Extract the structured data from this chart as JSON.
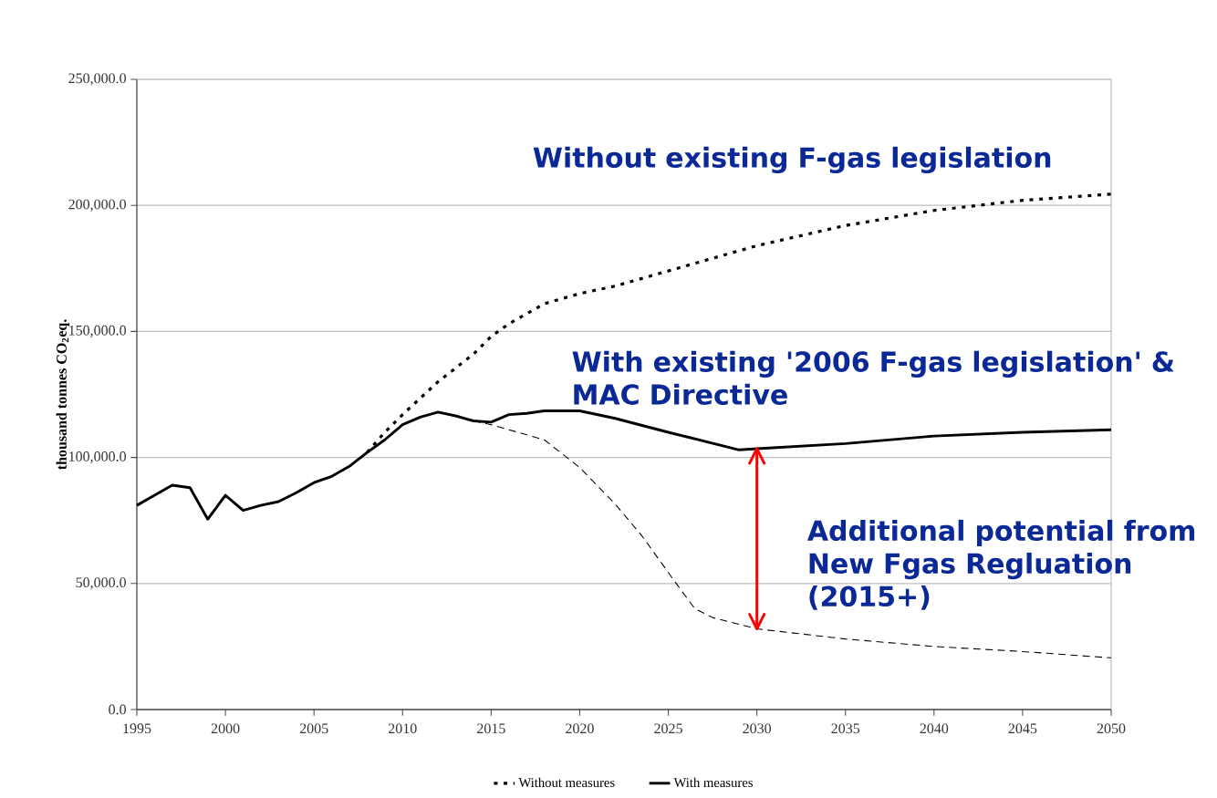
{
  "chart_data": {
    "type": "line",
    "ylabel": "thousand tonnes CO$_{2}$eq.",
    "xlim": [
      1995,
      2050
    ],
    "xticks": [
      1995,
      2000,
      2005,
      2010,
      2015,
      2020,
      2025,
      2030,
      2035,
      2040,
      2045,
      2050
    ],
    "ylim": [
      0,
      250000
    ],
    "yticks": [
      {
        "value": 0,
        "label": "0.0"
      },
      {
        "value": 50000,
        "label": "50,000.0"
      },
      {
        "value": 100000,
        "label": "100,000.0"
      },
      {
        "value": 150000,
        "label": "150,000.0"
      },
      {
        "value": 200000,
        "label": "200,000.0"
      },
      {
        "value": 250000,
        "label": "250,000.0"
      }
    ],
    "grid": "y",
    "legend": "bottom",
    "marker": "none",
    "series": [
      {
        "name": "Without measures",
        "color": "#000000",
        "line_style": "dotted",
        "x": [
          2008,
          2009,
          2010,
          2012,
          2014,
          2015,
          2016,
          2018,
          2020,
          2022,
          2025,
          2028,
          2030,
          2035,
          2040,
          2045,
          2050
        ],
        "values": [
          102000,
          110000,
          117000,
          130000,
          141000,
          148000,
          153000,
          161000,
          165000,
          168000,
          174000,
          180000,
          184000,
          192000,
          198000,
          202000,
          204500
        ]
      },
      {
        "name": "With measures",
        "color": "#000000",
        "line_style": "solid",
        "x": [
          1995,
          1996,
          1997,
          1998,
          1999,
          2000,
          2001,
          2002,
          2003,
          2004,
          2005,
          2006,
          2007,
          2008,
          2009,
          2010,
          2011,
          2012,
          2013,
          2014,
          2015,
          2016,
          2017,
          2018,
          2019,
          2020,
          2022,
          2025,
          2029,
          2030,
          2035,
          2040,
          2045,
          2050
        ],
        "values": [
          81000,
          85000,
          89000,
          88000,
          75500,
          85000,
          79000,
          81000,
          82500,
          86000,
          90000,
          92500,
          96500,
          102000,
          107000,
          113000,
          116000,
          118000,
          116500,
          114500,
          114000,
          117000,
          117500,
          118500,
          118500,
          118500,
          115500,
          110000,
          103000,
          103500,
          105500,
          108500,
          110000,
          111000
        ]
      },
      {
        "color": "#ff0000",
        "line_style": "solid",
        "x": [
          2030,
          2030
        ],
        "values": [
          103500,
          32000
        ]
      },
      {
        "color": "#000000",
        "line_style": "dashed",
        "x": [
          2014,
          2015,
          2018,
          2020,
          2022,
          2023.5,
          2025.5,
          2026.5,
          2027.5,
          2030,
          2035,
          2040,
          2045,
          2050
        ],
        "values": [
          114500,
          113000,
          107000,
          96000,
          81500,
          69000,
          49500,
          40000,
          36500,
          32000,
          28000,
          25000,
          23000,
          20500
        ]
      }
    ],
    "annotations": [
      "Without existing F-gas legislation",
      "With existing '2006 F-gas legislation' & MAC Directive",
      "Additional potential from New Fgas Regluation (2015+)"
    ]
  }
}
